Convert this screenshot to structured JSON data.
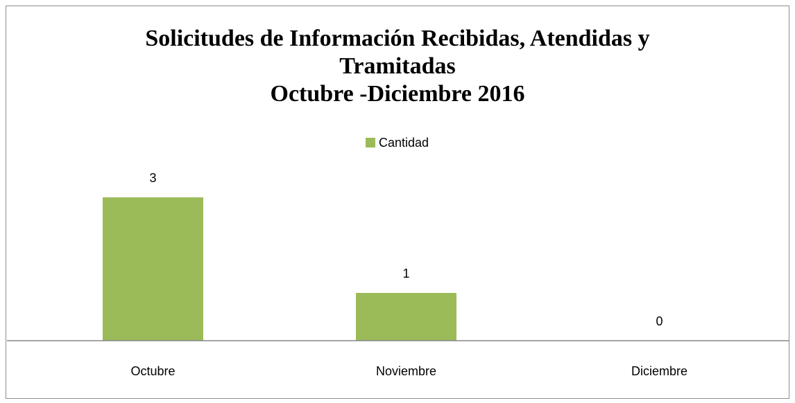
{
  "chart_data": {
    "type": "bar",
    "title": "Solicitudes de Información Recibidas, Atendidas y Tramitadas",
    "subtitle": "Octubre -Diciembre 2016",
    "categories": [
      "Octubre",
      "Noviembre",
      "Diciembre"
    ],
    "series": [
      {
        "name": "Cantidad",
        "color": "#9bbb59",
        "values": [
          3,
          1,
          0
        ]
      }
    ],
    "legend": "top"
  }
}
